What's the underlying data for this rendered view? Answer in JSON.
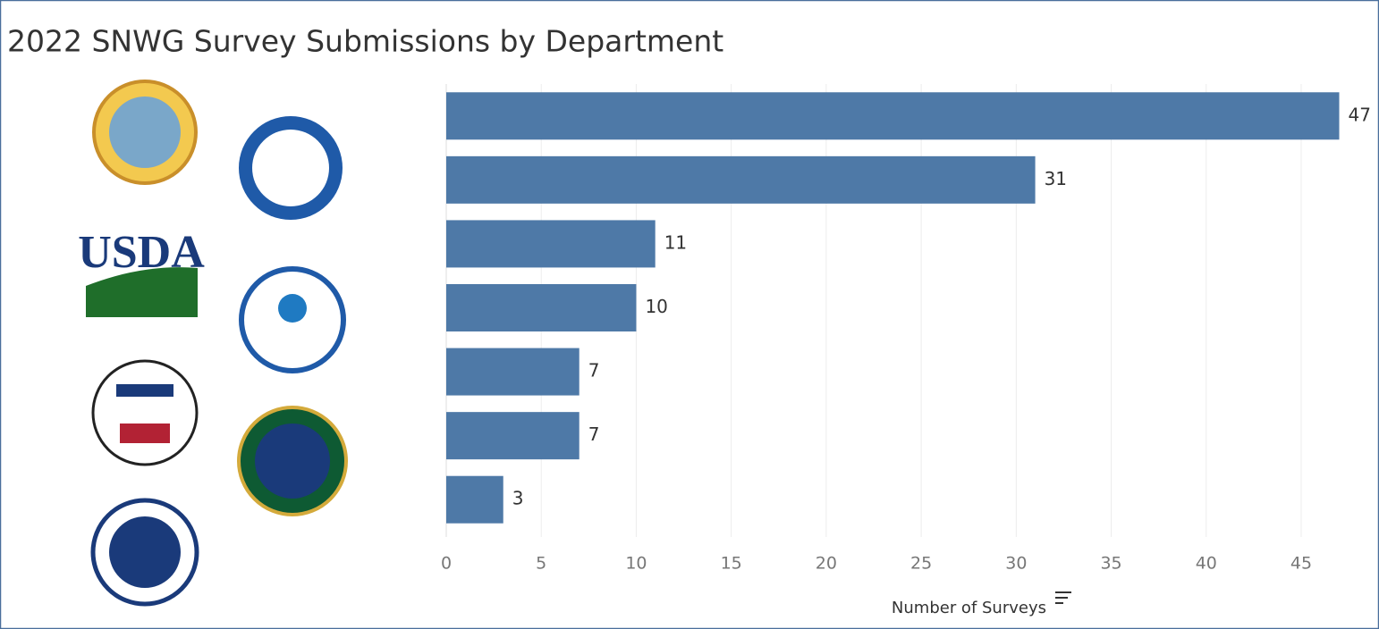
{
  "chart_data": {
    "type": "barh",
    "title": "2022 SNWG Survey Submissions by Department",
    "x_label": "Number of Surveys",
    "categories": [
      null,
      null,
      null,
      null,
      null,
      null,
      null
    ],
    "values": [
      47,
      31,
      11,
      10,
      7,
      7,
      3
    ],
    "color": "#4e79a7",
    "xlim": [
      0,
      49
    ],
    "xticks": [
      0,
      5,
      10,
      15,
      20,
      25,
      30,
      35,
      40,
      45
    ],
    "grid": true
  },
  "logos": {
    "usda": "USDA"
  }
}
